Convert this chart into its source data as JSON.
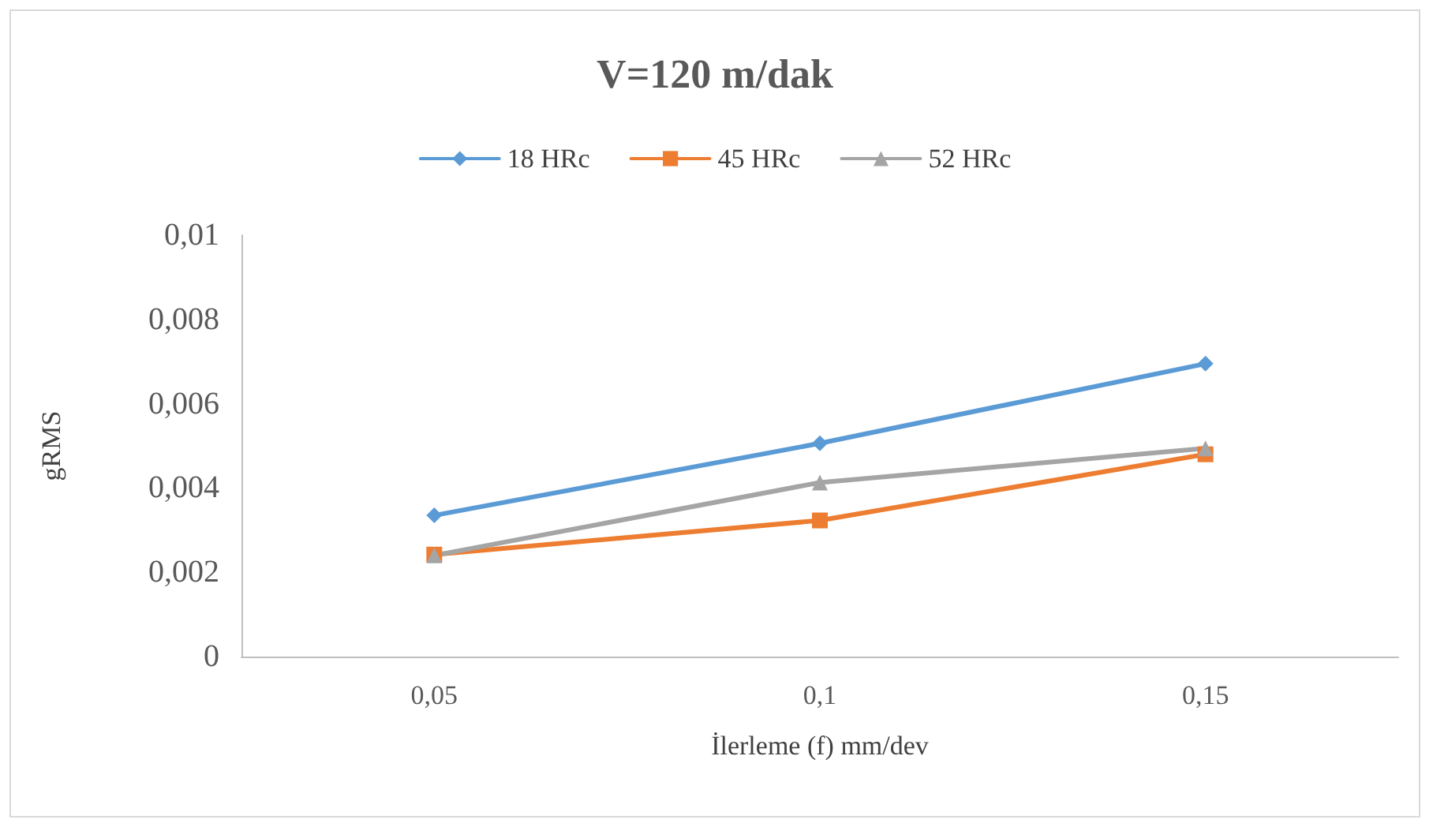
{
  "chart_data": {
    "type": "line",
    "title": "V=120 m/dak",
    "xlabel": "İlerleme (f) mm/dev",
    "ylabel": "gRMS",
    "categories": [
      "0,05",
      "0,1",
      "0,15"
    ],
    "series": [
      {
        "name": "18 HRc",
        "color": "#5b9bd5",
        "marker": "diamond",
        "values": [
          0.00335,
          0.00506,
          0.00695
        ]
      },
      {
        "name": "45 HRc",
        "color": "#ed7d31",
        "marker": "square",
        "values": [
          0.00242,
          0.00323,
          0.0048
        ]
      },
      {
        "name": "52 HRc",
        "color": "#a5a5a5",
        "marker": "triangle",
        "values": [
          0.0024,
          0.00413,
          0.00494
        ]
      }
    ],
    "ylim": [
      0,
      0.01
    ],
    "yticks": [
      0,
      {
        "value": 0.002,
        "label": "0,002"
      },
      {
        "value": 0.004,
        "label": "0,004"
      },
      {
        "value": 0.006,
        "label": "0,006"
      },
      {
        "value": 0.008,
        "label": "0,008"
      },
      {
        "value": 0.01,
        "label": "0,01"
      }
    ],
    "grid": false,
    "legend": "top",
    "line_style": "solid"
  }
}
